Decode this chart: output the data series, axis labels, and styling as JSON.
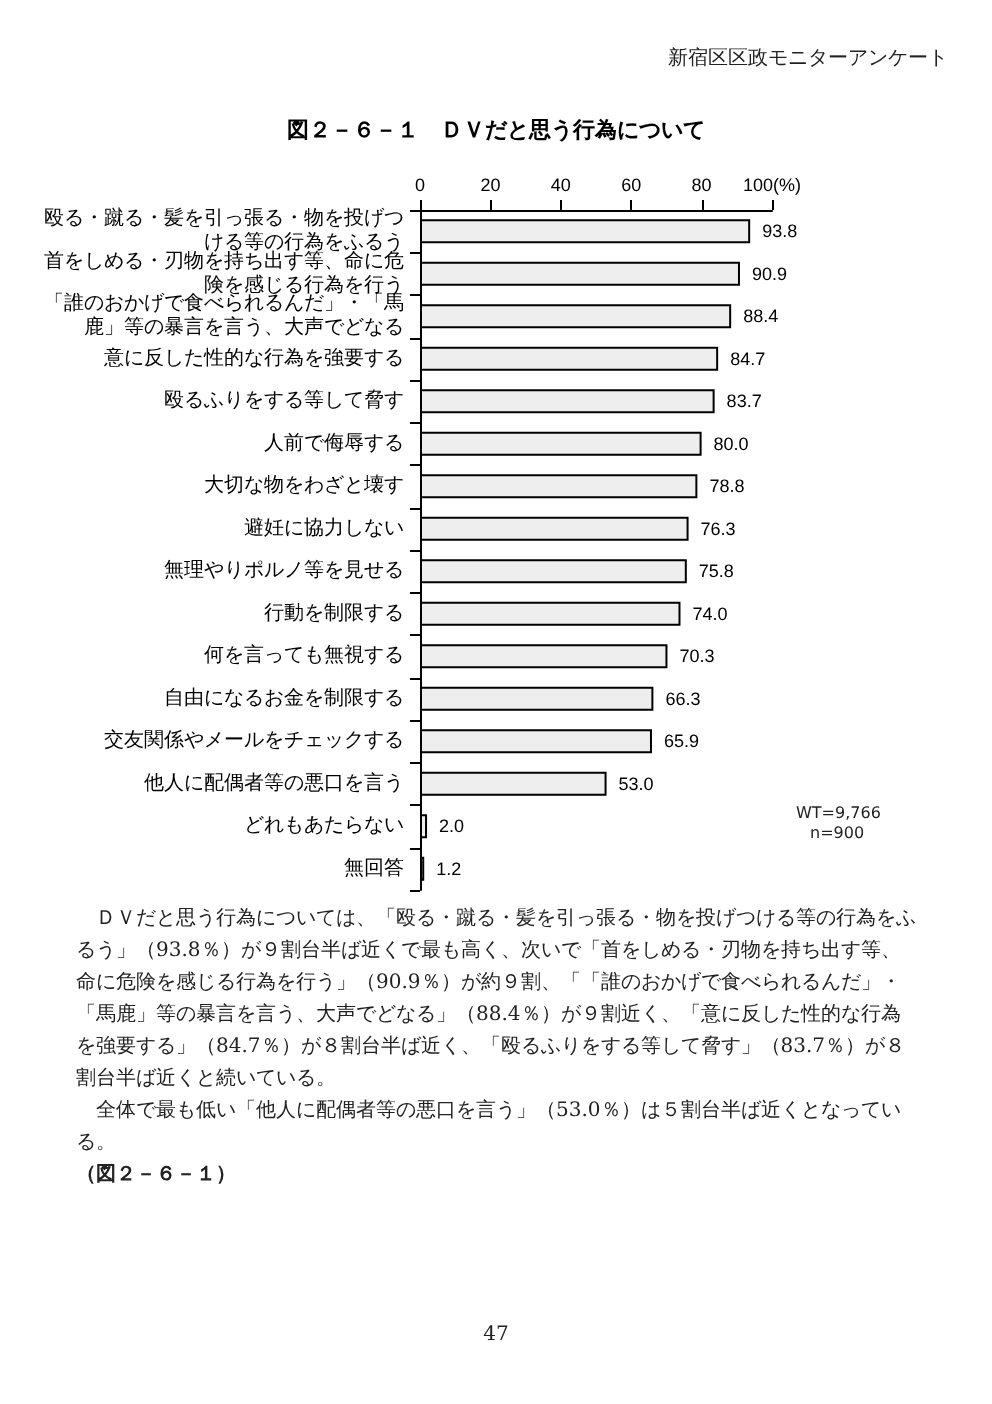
{
  "chart_data": {
    "type": "bar",
    "orientation": "horizontal",
    "title": "図２－６－１　ＤＶだと思う行為について",
    "categories": [
      "殴る・蹴る・髪を引っ張る・物を投げつける等の行為をふるう",
      "首をしめる・刃物を持ち出す等、命に危険を感じる行為を行う",
      "「誰のおかげで食べられるんだ」・「馬鹿」等の暴言を言う、大声でどなる",
      "意に反した性的な行為を強要する",
      "殴るふりをする等して脅す",
      "人前で侮辱する",
      "大切な物をわざと壊す",
      "避妊に協力しない",
      "無理やりポルノ等を見せる",
      "行動を制限する",
      "何を言っても無視する",
      "自由になるお金を制限する",
      "交友関係やメールをチェックする",
      "他人に配偶者等の悪口を言う",
      "どれもあたらない",
      "無回答"
    ],
    "values": [
      93.8,
      90.9,
      88.4,
      84.7,
      83.7,
      80.0,
      78.8,
      76.3,
      75.8,
      74.0,
      70.3,
      66.3,
      65.9,
      53.0,
      2.0,
      1.2
    ],
    "value_labels": [
      "93.8",
      "90.9",
      "88.4",
      "84.7",
      "83.7",
      "80.0",
      "78.8",
      "76.3",
      "75.8",
      "74.0",
      "70.3",
      "66.3",
      "65.9",
      "53.0",
      "2.0",
      "1.2"
    ],
    "color": "#eeeeee",
    "xlim": [
      0,
      100
    ],
    "xticks": [
      0,
      20,
      40,
      60,
      80,
      {
        "value": 100,
        "label": "100(%)"
      }
    ],
    "grid": false,
    "annotations": [
      "新宿区区政モニターアンケート",
      "WT=9,766",
      "n=900",
      "　ＤＶだと思う行為については、「殴る・蹴る・髪を引っ張る・物を投げつける等の行為をふるう」（93.8％）が９割台半ば近くで最も高く、次いで「首をしめる・刃物を持ち出す等、命に危険を感じる行為を行う」（90.9％）が約９割、「「誰のおかげで食べられるんだ」・「馬鹿」等の暴言を言う、大声でどなる」（88.4％）が９割近く、「意に反した性的な行為を強要する」（84.7％）が８割台半ば近く、「殴るふりをする等して脅す」（83.7％）が８割台半ば近くと続いている。",
      "　全体で最も低い「他人に配偶者等の悪口を言う」（53.0％）は５割台半ば近くとなっている。",
      "（図２－６－１）",
      "47"
    ]
  }
}
